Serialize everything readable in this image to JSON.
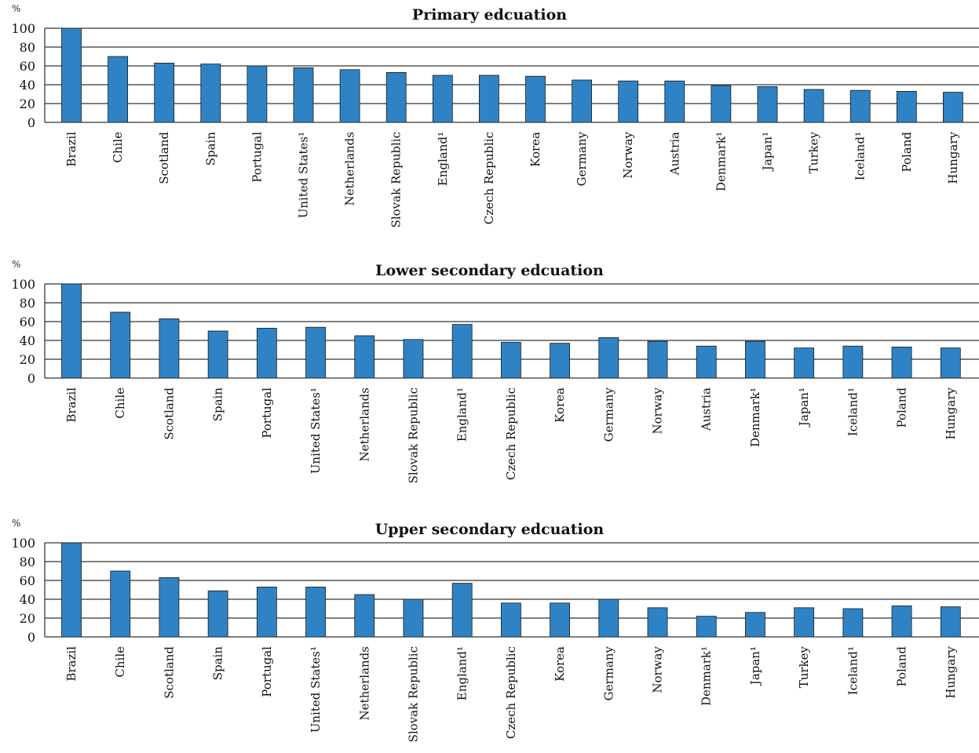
{
  "chart_data": [
    {
      "type": "bar",
      "title": "Primary edcuation",
      "ylabel": "%",
      "ylim": [
        0,
        100
      ],
      "yticks": [
        0,
        20,
        40,
        60,
        80,
        100
      ],
      "grid": true,
      "bar_color": "#2f83c5",
      "categories": [
        "Brazil",
        "Chile",
        "Scotland",
        "Spain",
        "Portugal",
        "United States¹",
        "Netherlands",
        "Slovak Republic",
        "England¹",
        "Czech Republic",
        "Korea",
        "Germany",
        "Norway",
        "Austria",
        "Denmark¹",
        "Japan¹",
        "Turkey",
        "Iceland¹",
        "Poland",
        "Hungary"
      ],
      "values": [
        100,
        70,
        63,
        62,
        60,
        58,
        56,
        53,
        50,
        50,
        49,
        45,
        44,
        44,
        39,
        38,
        35,
        34,
        33,
        32
      ]
    },
    {
      "type": "bar",
      "title": "Lower secondary edcuation",
      "ylabel": "%",
      "ylim": [
        0,
        100
      ],
      "yticks": [
        0,
        20,
        40,
        60,
        80,
        100
      ],
      "grid": true,
      "bar_color": "#2f83c5",
      "categories": [
        "Brazil",
        "Chile",
        "Scotland",
        "Spain",
        "Portugal",
        "United States¹",
        "Netherlands",
        "Slovak Republic",
        "England¹",
        "Czech Republic",
        "Korea",
        "Germany",
        "Norway",
        "Austria",
        "Denmark¹",
        "Japan¹",
        "Iceland¹",
        "Poland",
        "Hungary"
      ],
      "values": [
        100,
        70,
        63,
        50,
        53,
        54,
        45,
        41,
        57,
        38,
        37,
        43,
        39,
        34,
        39,
        32,
        34,
        33,
        32
      ]
    },
    {
      "type": "bar",
      "title": "Upper secondary edcuation",
      "ylabel": "%",
      "ylim": [
        0,
        100
      ],
      "yticks": [
        0,
        20,
        40,
        60,
        80,
        100
      ],
      "grid": true,
      "bar_color": "#2f83c5",
      "categories": [
        "Brazil",
        "Chile",
        "Scotland",
        "Spain",
        "Portugal",
        "United States¹",
        "Netherlands",
        "Slovak Republic",
        "England¹",
        "Czech Republic",
        "Korea",
        "Germany",
        "Norway",
        "Denmark¹",
        "Japan¹",
        "Turkey",
        "Iceland¹",
        "Poland",
        "Hungary"
      ],
      "values": [
        100,
        70,
        63,
        49,
        53,
        53,
        45,
        40,
        57,
        36,
        36,
        40,
        31,
        22,
        26,
        31,
        30,
        33,
        32
      ]
    }
  ]
}
